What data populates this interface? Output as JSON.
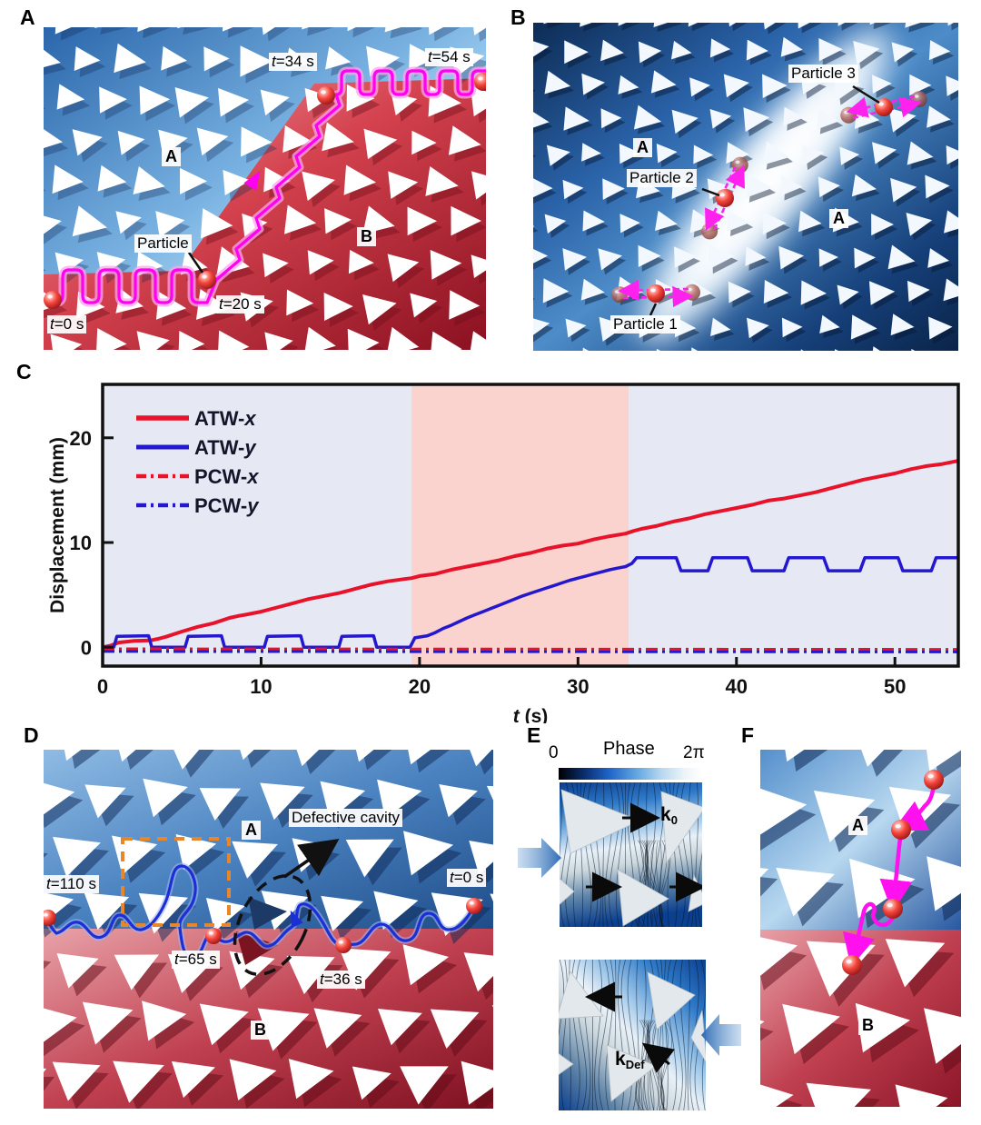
{
  "panel_letters": {
    "A": "A",
    "B": "B",
    "C": "C",
    "D": "D",
    "E": "E",
    "F": "F"
  },
  "panelA": {
    "t0": "t=0 s",
    "t20": "t=20 s",
    "t34": "t=34 s",
    "t54": "t=54 s",
    "particle": "Particle",
    "region_a": "A",
    "region_b": "B"
  },
  "panelB": {
    "p1": "Particle 1",
    "p2": "Particle 2",
    "p3": "Particle 3",
    "region_a1": "A",
    "region_a2": "A"
  },
  "panelD": {
    "t0": "t=0 s",
    "t36": "t=36 s",
    "t65": "t=65 s",
    "t110": "t=110 s",
    "defect": "Defective cavity",
    "region_a": "A",
    "region_b": "B"
  },
  "panelE": {
    "phase_title": "Phase",
    "scale_min": "0",
    "scale_max": "2π",
    "k0_main": "k",
    "k0_sub": "0",
    "kdef_main": "k",
    "kdef_sub": "Def"
  },
  "panelF": {
    "region_a": "A",
    "region_b": "B"
  },
  "chart_data": {
    "type": "line",
    "title": "",
    "xlabel": "t (s)",
    "ylabel": "Displacement (mm)",
    "xlim": [
      0,
      54
    ],
    "ylim": [
      -1.8,
      25.1
    ],
    "xticks": [
      0,
      10,
      20,
      30,
      40,
      50
    ],
    "yticks": [
      0,
      10,
      20
    ],
    "grid": false,
    "legend_position": "upper-left",
    "plot_bg": "#e6e9f3",
    "highlight_band": {
      "from": 19.5,
      "to": 33.2,
      "color": "#fbd3ce"
    },
    "frame_color": "#111111",
    "series": [
      {
        "name": "ATW-x",
        "color": "#e8132a",
        "dash": "solid",
        "width": 4,
        "points": [
          [
            0,
            0
          ],
          [
            0.5,
            0.15
          ],
          [
            1,
            0.45
          ],
          [
            2,
            0.6
          ],
          [
            3,
            0.65
          ],
          [
            3.5,
            0.8
          ],
          [
            4,
            1.0
          ],
          [
            5,
            1.5
          ],
          [
            6,
            1.95
          ],
          [
            7,
            2.3
          ],
          [
            8,
            2.8
          ],
          [
            8.6,
            3.0
          ],
          [
            9,
            3.1
          ],
          [
            10,
            3.4
          ],
          [
            11,
            3.8
          ],
          [
            12,
            4.2
          ],
          [
            13,
            4.6
          ],
          [
            14,
            4.9
          ],
          [
            15,
            5.2
          ],
          [
            16,
            5.6
          ],
          [
            17,
            6.0
          ],
          [
            18,
            6.3
          ],
          [
            19,
            6.5
          ],
          [
            19.5,
            6.6
          ],
          [
            20,
            6.8
          ],
          [
            21,
            7.0
          ],
          [
            22,
            7.4
          ],
          [
            23,
            7.7
          ],
          [
            24,
            8.0
          ],
          [
            25,
            8.3
          ],
          [
            26,
            8.7
          ],
          [
            27,
            9.0
          ],
          [
            28,
            9.4
          ],
          [
            29,
            9.7
          ],
          [
            30,
            9.9
          ],
          [
            31,
            10.3
          ],
          [
            32,
            10.6
          ],
          [
            33,
            10.85
          ],
          [
            33.5,
            11.1
          ],
          [
            34,
            11.3
          ],
          [
            35,
            11.6
          ],
          [
            36,
            12.0
          ],
          [
            37,
            12.3
          ],
          [
            38,
            12.7
          ],
          [
            39,
            13.0
          ],
          [
            40,
            13.3
          ],
          [
            41,
            13.6
          ],
          [
            42,
            14.0
          ],
          [
            43,
            14.2
          ],
          [
            44,
            14.5
          ],
          [
            45,
            14.8
          ],
          [
            46,
            15.2
          ],
          [
            47,
            15.6
          ],
          [
            48,
            16.0
          ],
          [
            49,
            16.3
          ],
          [
            50,
            16.6
          ],
          [
            51,
            17.0
          ],
          [
            52,
            17.3
          ],
          [
            53,
            17.5
          ],
          [
            54,
            17.8
          ]
        ]
      },
      {
        "name": "ATW-y",
        "color": "#2418cf",
        "dash": "solid",
        "width": 3.5,
        "points": [
          [
            0,
            0
          ],
          [
            0.7,
            0
          ],
          [
            0.9,
            1.05
          ],
          [
            2.9,
            1.1
          ],
          [
            3.1,
            0
          ],
          [
            5.2,
            0
          ],
          [
            5.4,
            1.05
          ],
          [
            7.5,
            1.1
          ],
          [
            7.7,
            0
          ],
          [
            10.2,
            0
          ],
          [
            10.4,
            1.05
          ],
          [
            12.5,
            1.1
          ],
          [
            12.7,
            0
          ],
          [
            14.9,
            0
          ],
          [
            15.1,
            1.05
          ],
          [
            17.1,
            1.1
          ],
          [
            17.3,
            0
          ],
          [
            19.4,
            0
          ],
          [
            19.7,
            0.9
          ],
          [
            20.5,
            1.1
          ],
          [
            21,
            1.4
          ],
          [
            21.5,
            1.8
          ],
          [
            22,
            2.1
          ],
          [
            22.5,
            2.45
          ],
          [
            23,
            2.8
          ],
          [
            23.5,
            3.1
          ],
          [
            24,
            3.4
          ],
          [
            24.5,
            3.7
          ],
          [
            25,
            4.0
          ],
          [
            25.5,
            4.3
          ],
          [
            26,
            4.6
          ],
          [
            26.5,
            4.9
          ],
          [
            27,
            5.15
          ],
          [
            27.5,
            5.4
          ],
          [
            28,
            5.65
          ],
          [
            28.5,
            5.9
          ],
          [
            29,
            6.15
          ],
          [
            29.5,
            6.4
          ],
          [
            30,
            6.6
          ],
          [
            30.5,
            6.8
          ],
          [
            31,
            7.0
          ],
          [
            31.5,
            7.2
          ],
          [
            32,
            7.4
          ],
          [
            32.5,
            7.55
          ],
          [
            33,
            7.7
          ],
          [
            33.4,
            8.0
          ],
          [
            33.7,
            8.55
          ],
          [
            36.2,
            8.55
          ],
          [
            36.5,
            7.3
          ],
          [
            38.2,
            7.3
          ],
          [
            38.5,
            8.55
          ],
          [
            40.7,
            8.55
          ],
          [
            41.0,
            7.3
          ],
          [
            43.0,
            7.3
          ],
          [
            43.3,
            8.55
          ],
          [
            45.5,
            8.55
          ],
          [
            45.8,
            7.3
          ],
          [
            47.8,
            7.3
          ],
          [
            48.1,
            8.55
          ],
          [
            50.2,
            8.55
          ],
          [
            50.5,
            7.3
          ],
          [
            52.3,
            7.3
          ],
          [
            52.6,
            8.55
          ],
          [
            54,
            8.55
          ]
        ]
      },
      {
        "name": "PCW-x",
        "color": "#e8132a",
        "dash": "dashdot",
        "width": 3,
        "points": [
          [
            0,
            -0.15
          ],
          [
            54,
            -0.2
          ]
        ]
      },
      {
        "name": "PCW-y",
        "color": "#2418cf",
        "dash": "dashdot",
        "width": 3,
        "points": [
          [
            0,
            -0.4
          ],
          [
            54,
            -0.45
          ]
        ]
      }
    ]
  }
}
